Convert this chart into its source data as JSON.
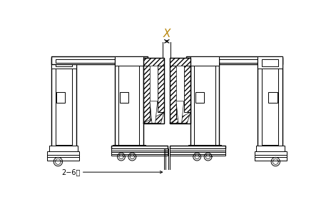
{
  "bg_color": "#ffffff",
  "line_color": "#000000",
  "x_label_color": "#b8860b",
  "dim_label_color": "#000000",
  "arrow_color": "#000000",
  "fig_width": 4.57,
  "fig_height": 2.9,
  "dpi": 100,
  "x_dim_text": "X",
  "bottom_dim_text": "2−6㎜"
}
